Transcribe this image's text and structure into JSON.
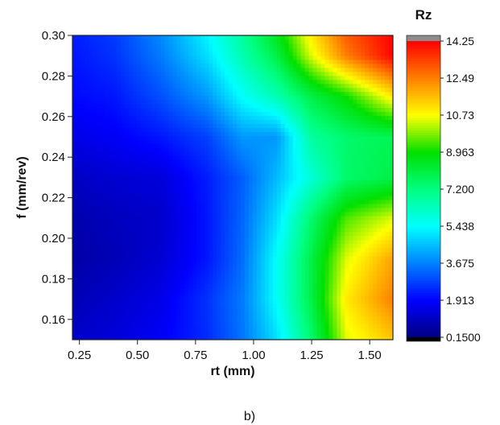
{
  "chart_data": {
    "type": "heatmap",
    "title": "",
    "xlabel": "rt (mm)",
    "ylabel": "f (mm/rev)",
    "xlim": [
      0.22,
      1.6
    ],
    "ylim": [
      0.15,
      0.3
    ],
    "x_ticks": [
      0.25,
      0.5,
      0.75,
      1.0,
      1.25,
      1.5
    ],
    "x_tick_labels": [
      "0.25",
      "0.50",
      "0.75",
      "1.00",
      "1.25",
      "1.50"
    ],
    "y_ticks": [
      0.16,
      0.18,
      0.2,
      0.22,
      0.24,
      0.26,
      0.28,
      0.3
    ],
    "y_tick_labels": [
      "0.16",
      "0.18",
      "0.20",
      "0.22",
      "0.24",
      "0.26",
      "0.28",
      "0.30"
    ],
    "x": [
      0.22,
      0.4,
      0.6,
      0.8,
      0.95,
      1.1,
      1.25,
      1.4,
      1.6
    ],
    "y": [
      0.15,
      0.17,
      0.19,
      0.21,
      0.23,
      0.25,
      0.27,
      0.29,
      0.3
    ],
    "z": [
      [
        1.2,
        1.4,
        1.8,
        2.5,
        3.5,
        5.0,
        7.5,
        10.5,
        11.5
      ],
      [
        0.9,
        1.2,
        1.6,
        2.6,
        3.6,
        5.5,
        8.0,
        11.0,
        12.5
      ],
      [
        0.7,
        0.9,
        1.3,
        2.2,
        3.4,
        5.5,
        8.0,
        10.5,
        12.0
      ],
      [
        0.8,
        1.0,
        1.2,
        2.2,
        3.3,
        5.0,
        7.5,
        9.5,
        10.5
      ],
      [
        1.1,
        1.3,
        1.4,
        2.3,
        3.2,
        4.5,
        6.0,
        7.5,
        8.0
      ],
      [
        1.6,
        1.8,
        2.2,
        2.8,
        4.0,
        4.0,
        6.8,
        7.5,
        7.8
      ],
      [
        2.0,
        2.2,
        3.0,
        4.0,
        5.5,
        6.5,
        8.0,
        9.0,
        11.0
      ],
      [
        2.2,
        2.6,
        3.6,
        5.0,
        6.5,
        8.0,
        10.5,
        12.5,
        14.2
      ],
      [
        2.3,
        2.7,
        3.8,
        5.3,
        6.8,
        8.5,
        11.0,
        13.0,
        14.25
      ]
    ],
    "colorbar": {
      "title": "Rz",
      "levels": [
        0.15,
        1.913,
        3.675,
        5.438,
        7.2,
        8.963,
        10.73,
        12.49,
        14.25
      ],
      "labels": [
        "0.1500",
        "1.913",
        "3.675",
        "5.438",
        "7.200",
        "8.963",
        "10.73",
        "12.49",
        "14.25"
      ],
      "colors": [
        "#000080",
        "#0000ff",
        "#0080ff",
        "#00ffff",
        "#00ff80",
        "#00e000",
        "#ffff00",
        "#ff8000",
        "#ff0000"
      ],
      "under_color": "#000000",
      "over_color": "#8c8c8c"
    },
    "grid": false
  },
  "caption": "b)"
}
